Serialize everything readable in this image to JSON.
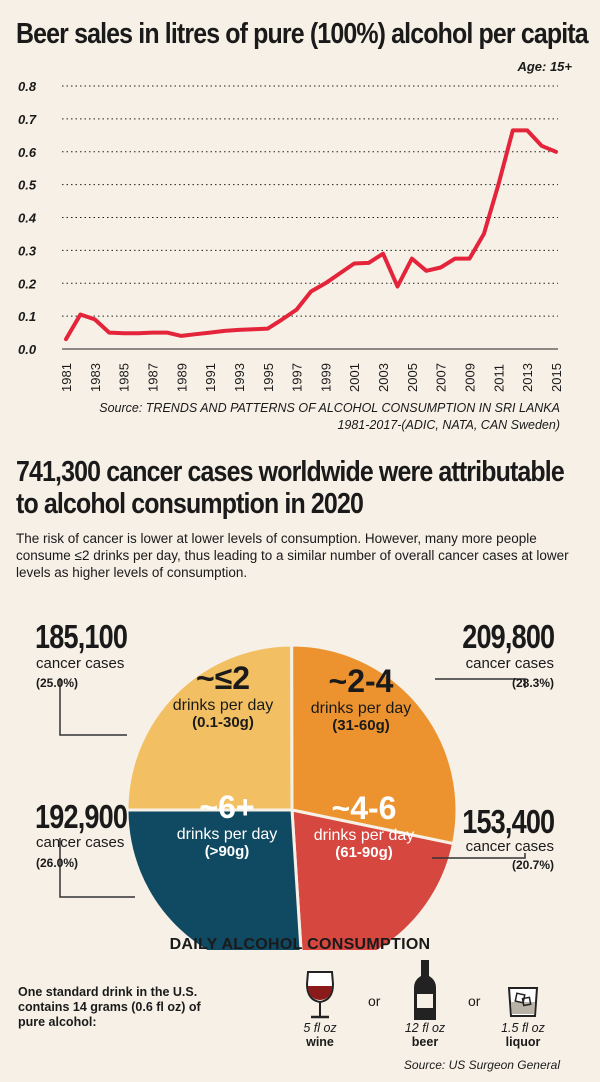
{
  "line_chart_title": "Beer sales in litres of pure (100%) alcohol per capita",
  "age_label": "Age: 15+",
  "source1_line1": "Source: TRENDS AND PATTERNS OF ALCOHOL CONSUMPTION IN SRI LANKA",
  "source1_line2": "1981-2017-(ADIC, NATA, CAN Sweden)",
  "section2_title_line1": "741,300 cancer cases worldwide were attributable",
  "section2_title_line2": "to alcohol consumption in 2020",
  "section2_body": "The risk of cancer is lower at lower levels of consumption. However, many more people consume  ≤2 drinks per day, thus leading to a similar number of overall cancer cases at lower levels as higher levels of consumption.",
  "pie_caption": "DAILY ALCOHOL CONSUMPTION",
  "callouts": [
    {
      "count": "185,100",
      "label": "cancer cases",
      "pct": "(25.0%)"
    },
    {
      "count": "209,800",
      "label": "cancer cases",
      "pct": "(28.3%)"
    },
    {
      "count": "192,900",
      "label": "cancer cases",
      "pct": "(26.0%)"
    },
    {
      "count": "153,400",
      "label": "cancer cases",
      "pct": "(20.7%)"
    }
  ],
  "slices_text": [
    {
      "head": "~≤2",
      "sub": "drinks per day",
      "grams": "(0.1-30g)"
    },
    {
      "head": "~2-4",
      "sub": "drinks per day",
      "grams": "(31-60g)"
    },
    {
      "head": "~6+",
      "sub": "drinks per day",
      "grams": "(>90g)"
    },
    {
      "head": "~4-6",
      "sub": "drinks per day",
      "grams": "(61-90g)"
    }
  ],
  "standard_drink_text": "One standard drink in the U.S. contains 14 grams (0.6 fl oz) of pure alcohol:",
  "drinks": [
    {
      "amount": "5 fl oz",
      "name": "wine",
      "icon": "wine-glass-icon"
    },
    {
      "amount": "12 fl oz",
      "name": "beer",
      "icon": "beer-bottle-icon"
    },
    {
      "amount": "1.5 fl oz",
      "name": "liquor",
      "icon": "liquor-glass-icon"
    }
  ],
  "or_label": "or",
  "source2": "Source: US Surgeon General",
  "chart_data": [
    {
      "type": "line",
      "title": "Beer sales in litres of pure (100%) alcohol per capita",
      "x": [
        1981,
        1982,
        1983,
        1984,
        1985,
        1986,
        1987,
        1988,
        1989,
        1990,
        1991,
        1992,
        1993,
        1994,
        1995,
        1996,
        1997,
        1998,
        1999,
        2000,
        2001,
        2002,
        2003,
        2004,
        2005,
        2006,
        2007,
        2008,
        2009,
        2010,
        2011,
        2012,
        2013,
        2014,
        2015
      ],
      "y": [
        0.03,
        0.105,
        0.09,
        0.05,
        0.048,
        0.048,
        0.05,
        0.05,
        0.04,
        0.045,
        0.05,
        0.055,
        0.058,
        0.06,
        0.062,
        0.09,
        0.12,
        0.175,
        0.2,
        0.23,
        0.26,
        0.262,
        0.29,
        0.19,
        0.275,
        0.238,
        0.248,
        0.275,
        0.275,
        0.35,
        0.5,
        0.665,
        0.665,
        0.618,
        0.6
      ],
      "xticks": [
        "1981",
        "1983",
        "1985",
        "1987",
        "1989",
        "1991",
        "1993",
        "1995",
        "1997",
        "1999",
        "2001",
        "2003",
        "2005",
        "2007",
        "2009",
        "2011",
        "2013",
        "2015"
      ],
      "yticks": [
        "0.0",
        "0.1",
        "0.2",
        "0.3",
        "0.4",
        "0.5",
        "0.6",
        "0.7",
        "0.8"
      ],
      "ylim": [
        0,
        0.8
      ],
      "grid": true,
      "line_color": "#e4243b"
    },
    {
      "type": "pie",
      "title": "DAILY ALCOHOL CONSUMPTION",
      "labels": [
        "~≤2 drinks per day",
        "~2-4 drinks per day",
        "~4-6 drinks per day",
        "~6+ drinks per day"
      ],
      "values": [
        185100,
        209800,
        153400,
        192900
      ],
      "percent": [
        25.0,
        28.3,
        20.7,
        26.0
      ],
      "colors": [
        "#f2c062",
        "#ec932f",
        "#d5473f",
        "#0f4a62"
      ]
    }
  ]
}
